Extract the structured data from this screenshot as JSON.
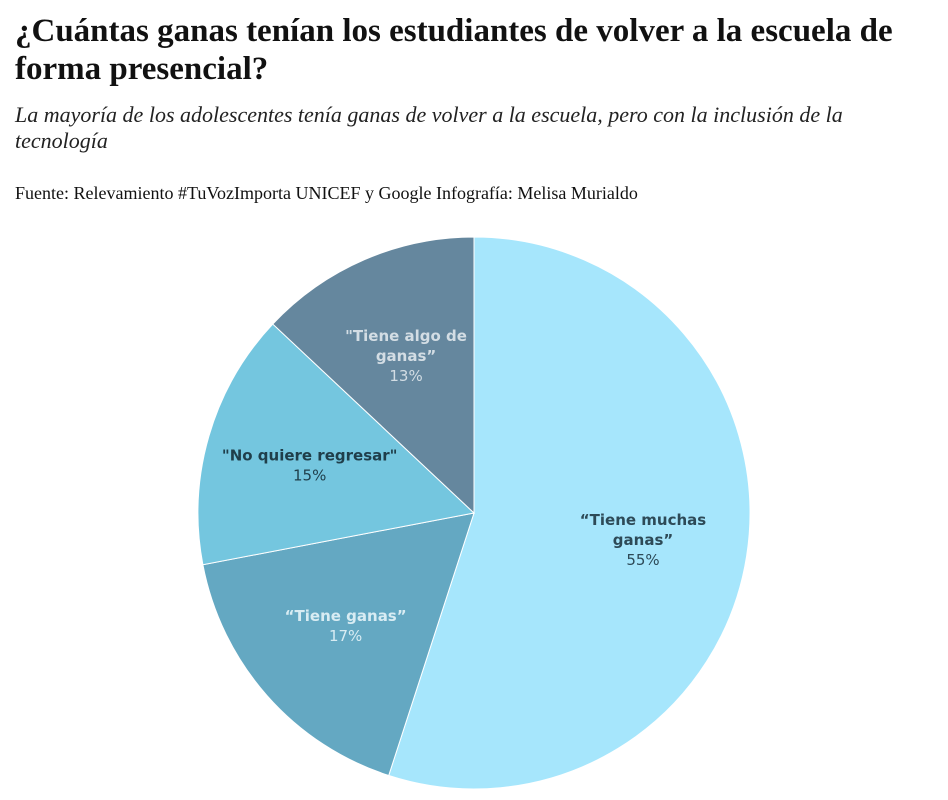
{
  "title": "¿Cuántas ganas tenían los estudiantes de volver a la escuela de forma presencial?",
  "subtitle": "La mayoría de los adolescentes tenía ganas de volver a la escuela, pero con la inclusión de la tecnología",
  "source": "Fuente: Relevamiento #TuVozImporta UNICEF y Google Infografía: Melisa Murialdo",
  "chart_data": {
    "type": "pie",
    "title": "¿Cuántas ganas tenían los estudiantes de volver a la escuela de forma presencial?",
    "slices": [
      {
        "name_lines": [
          "“Tiene muchas",
          "ganas”"
        ],
        "value_label": "55%",
        "value": 55,
        "color": "#a6e6fc",
        "label_color": "#2d4a57"
      },
      {
        "name_lines": [
          "“Tiene ganas”"
        ],
        "value_label": "17%",
        "value": 17,
        "color": "#64a8c2",
        "label_color": "#d8ecf3"
      },
      {
        "name_lines": [
          "\"No quiere regresar\""
        ],
        "value_label": "15%",
        "value": 15,
        "color": "#74c6df",
        "label_color": "#1f3e4a"
      },
      {
        "name_lines": [
          "\"Tiene algo de",
          "ganas”"
        ],
        "value_label": "13%",
        "value": 13,
        "color": "#65879e",
        "label_color": "#d3dde4"
      }
    ]
  }
}
